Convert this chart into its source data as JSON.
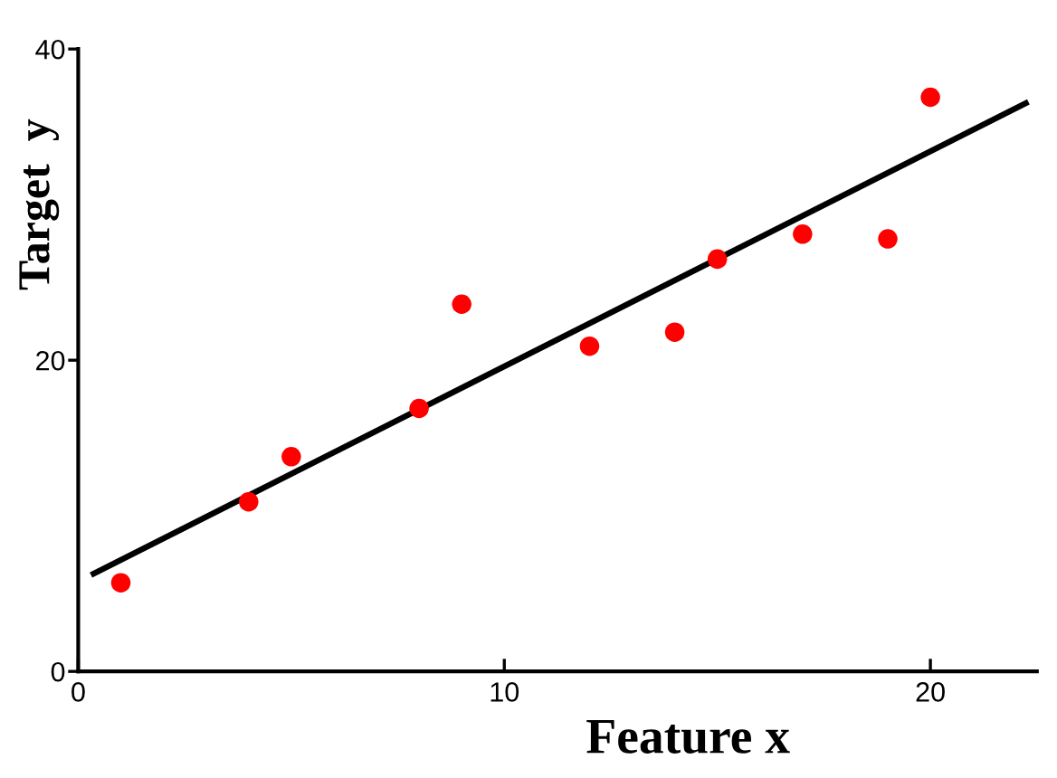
{
  "chart_data": {
    "type": "scatter",
    "xlabel": "Feature x",
    "ylabel": "Target  y",
    "xlim": [
      0,
      22.5
    ],
    "ylim": [
      0,
      40
    ],
    "xticks": [
      0,
      10,
      20
    ],
    "yticks": [
      0,
      20,
      40
    ],
    "grid": false,
    "marker": "circle",
    "series": [
      {
        "color": "#ff0000",
        "x": [
          1,
          4,
          5,
          8,
          9,
          12,
          14,
          15,
          17,
          19,
          20
        ],
        "values": [
          5.7,
          10.9,
          13.8,
          16.9,
          23.6,
          20.9,
          21.8,
          26.5,
          28.1,
          27.8,
          36.9
        ]
      },
      {
        "type": "line",
        "color": "#000000",
        "marker": "none",
        "line_style": "solid",
        "x": [
          0.3,
          22.3
        ],
        "values": [
          6.2,
          36.6
        ]
      }
    ]
  }
}
